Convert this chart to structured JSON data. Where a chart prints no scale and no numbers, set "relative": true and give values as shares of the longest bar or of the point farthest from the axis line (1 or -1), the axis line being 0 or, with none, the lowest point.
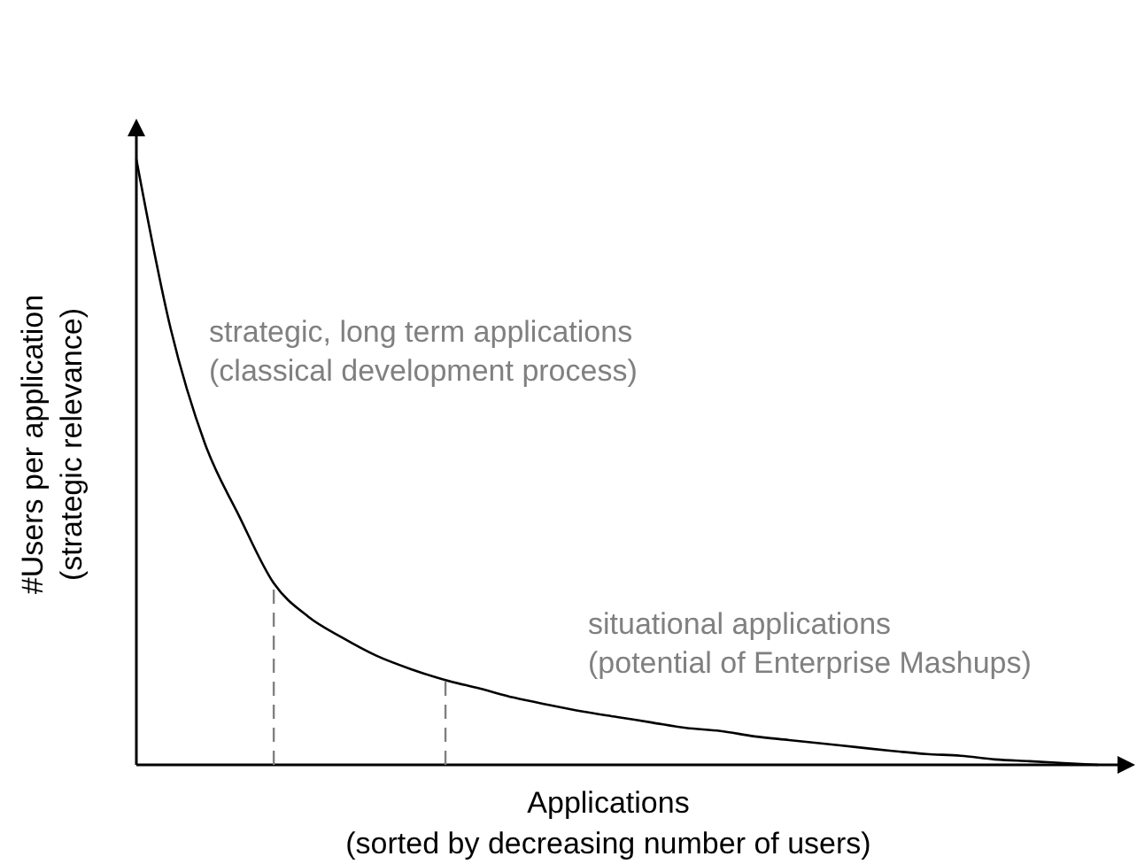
{
  "chart_data": {
    "type": "line",
    "relative": true,
    "xlabel": "Applications\n(sorted by decreasing number of users)",
    "ylabel": "#Users per application\n(strategic relevance)",
    "categories": [
      null,
      null,
      null,
      null,
      null,
      null,
      null,
      null,
      null,
      null,
      null,
      null,
      null,
      null,
      null,
      null,
      null,
      null,
      null,
      null,
      null,
      null,
      null,
      null,
      null,
      null,
      null,
      null,
      null
    ],
    "series": [
      {
        "color": "#000000",
        "values": [
          1.0,
          0.72,
          0.53,
          0.41,
          0.3,
          0.245,
          0.21,
          0.18,
          0.158,
          0.14,
          0.126,
          0.111,
          0.099,
          0.088,
          0.079,
          0.07,
          0.061,
          0.056,
          0.047,
          0.041,
          0.035,
          0.029,
          0.023,
          0.018,
          0.015,
          0.009,
          0.006,
          0.003,
          0
        ]
      }
    ],
    "annotations": [
      "strategic, long term applications\n(classical development process)",
      "situational applications\n(potential of Enterprise Mashups)"
    ],
    "marker": "none",
    "line_style": "solid"
  }
}
